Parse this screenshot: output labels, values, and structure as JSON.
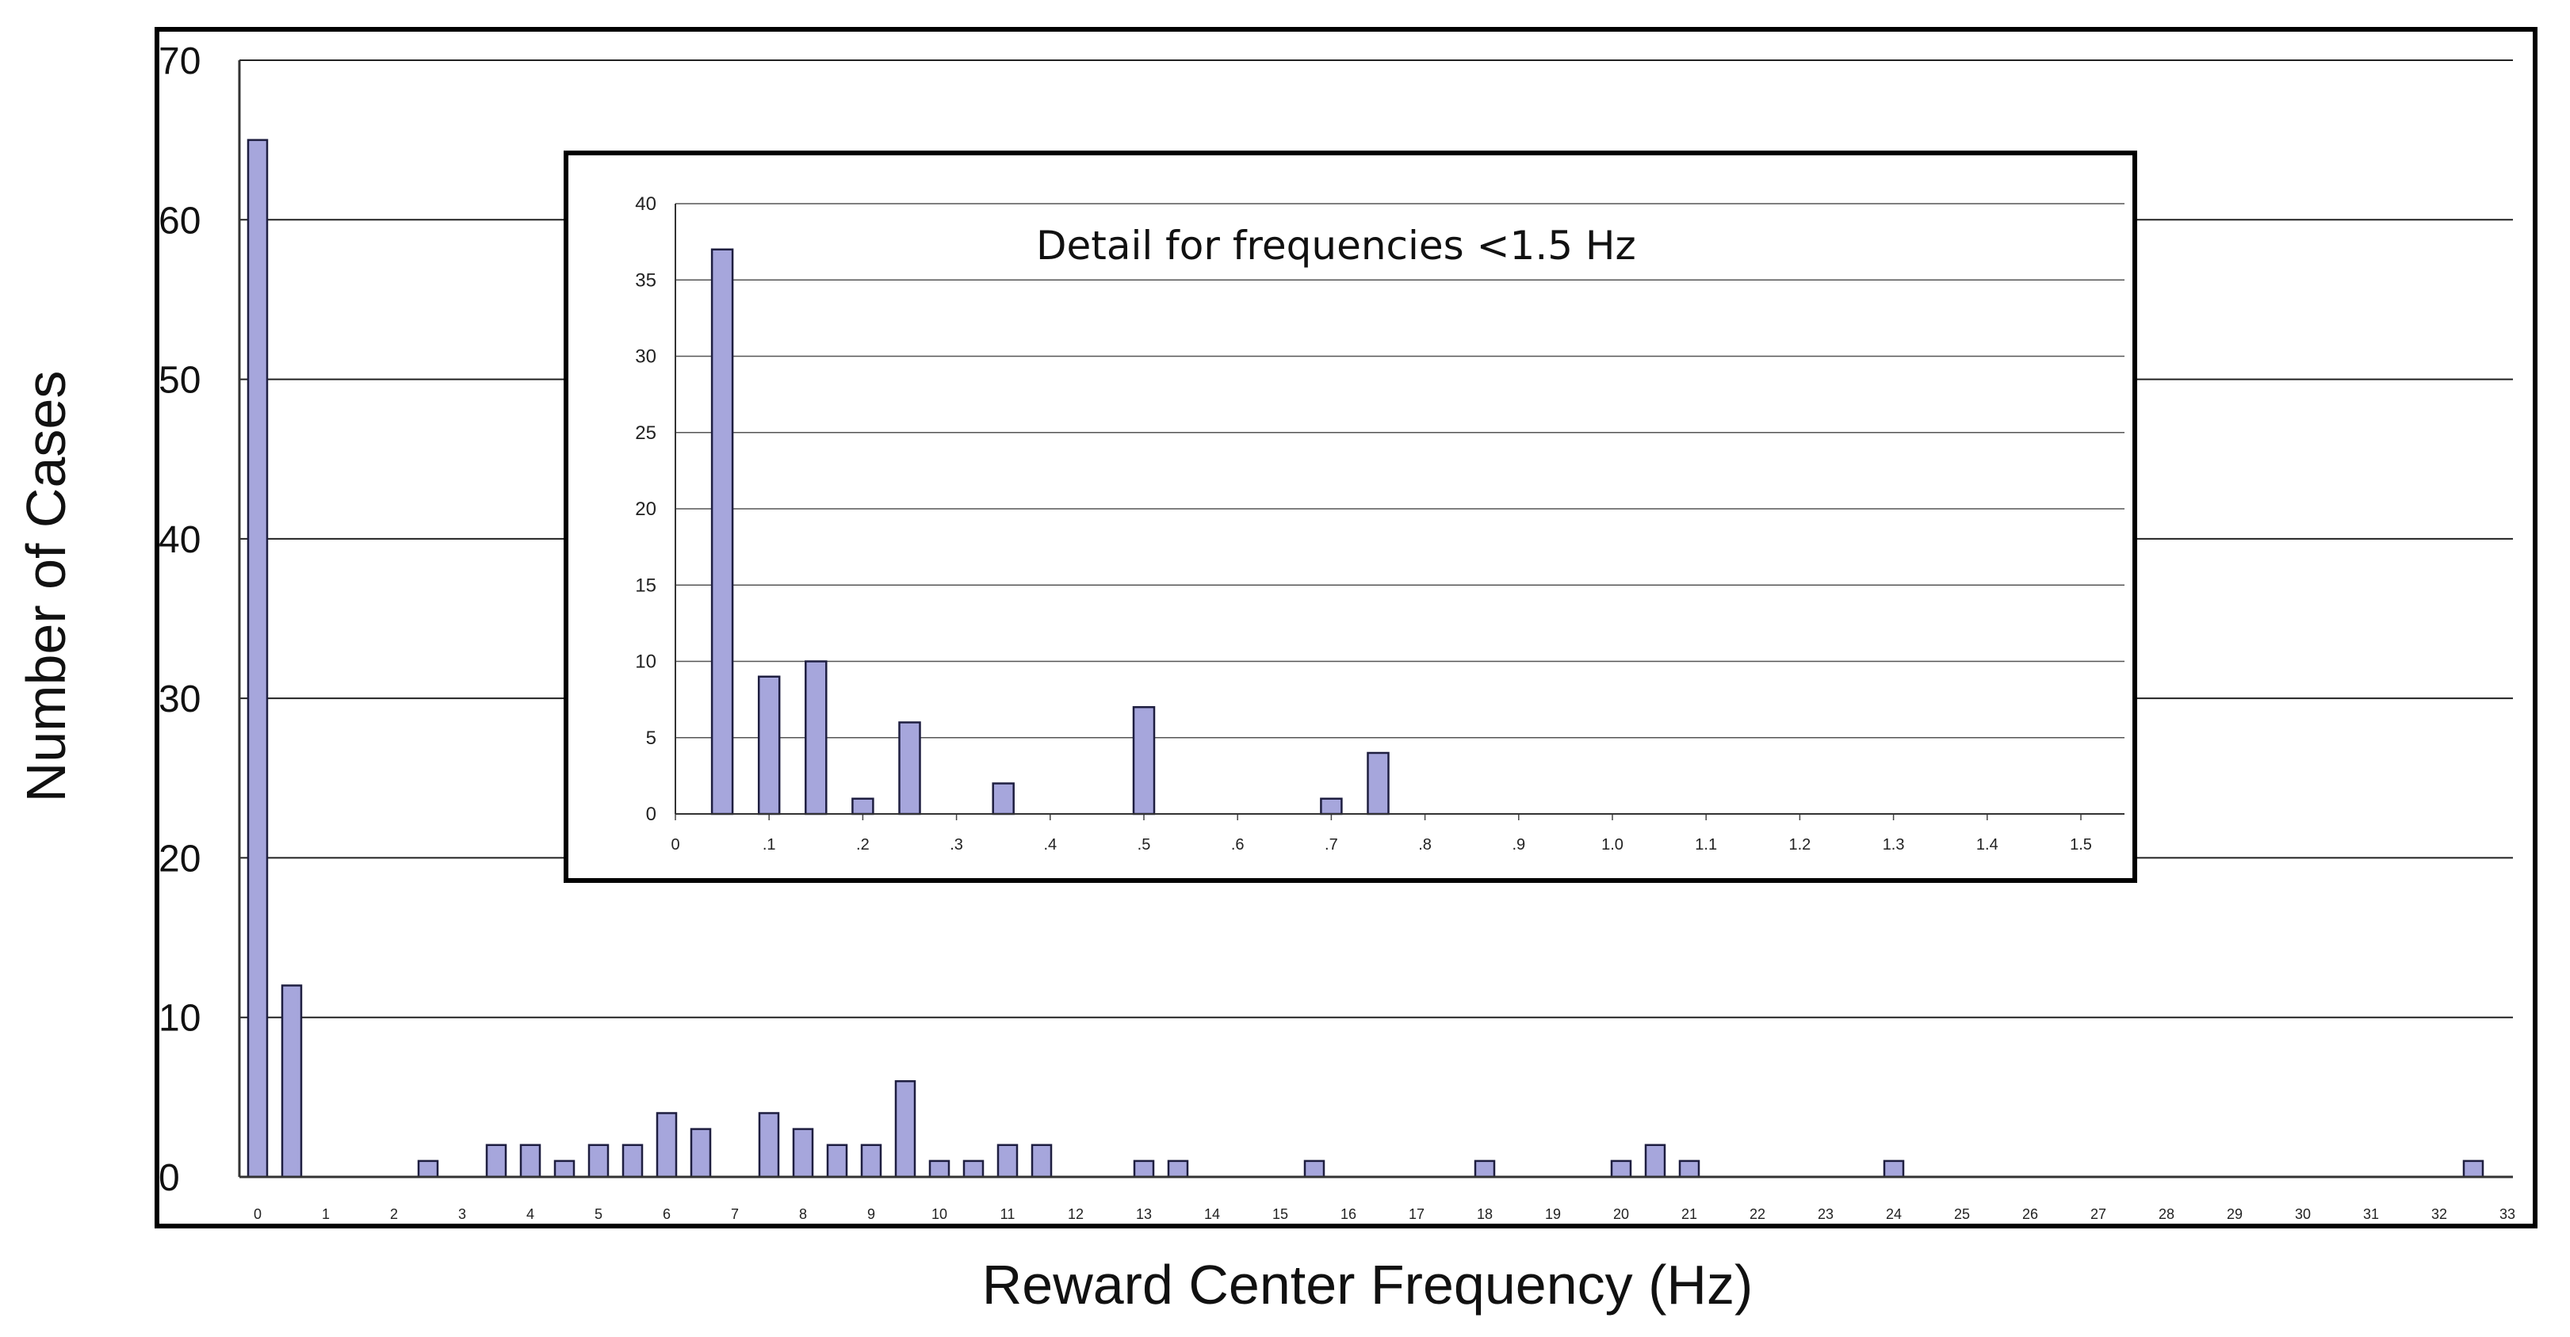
{
  "chart_data": [
    {
      "type": "bar",
      "title": "",
      "xlabel": "Reward Center Frequency (Hz)",
      "ylabel": "Number of Cases",
      "ylim": [
        0,
        70
      ],
      "xlim": [
        -0.25,
        33.25
      ],
      "grid": true,
      "bar_color": "#a6a6dc",
      "bar_edge": "#1e1e40",
      "yticks": [
        0,
        10,
        20,
        30,
        40,
        50,
        60,
        70
      ],
      "xticks": [
        "0",
        "1",
        "2",
        "3",
        "4",
        "5",
        "6",
        "7",
        "8",
        "9",
        "10",
        "11",
        "12",
        "13",
        "14",
        "15",
        "16",
        "17",
        "18",
        "19",
        "20",
        "21",
        "22",
        "23",
        "24",
        "25",
        "26",
        "27",
        "28",
        "29",
        "30",
        "31",
        "32",
        "33"
      ],
      "x": [
        0,
        0.5,
        2.5,
        3.5,
        4,
        4.5,
        5,
        5.5,
        6,
        6.5,
        7.5,
        8,
        8.5,
        9,
        9.5,
        10,
        10.5,
        11,
        11.5,
        13,
        13.5,
        15.5,
        18,
        20,
        20.5,
        21,
        24,
        32.5
      ],
      "values": [
        65,
        12,
        1,
        2,
        2,
        1,
        2,
        2,
        4,
        3,
        4,
        3,
        2,
        2,
        6,
        1,
        1,
        2,
        2,
        1,
        1,
        1,
        1,
        1,
        2,
        1,
        1,
        1
      ]
    },
    {
      "type": "bar",
      "title": "Detail for frequencies <1.5 Hz",
      "xlabel": "",
      "ylabel": "",
      "ylim": [
        0,
        40
      ],
      "xlim": [
        0,
        1.55
      ],
      "grid": true,
      "bar_color": "#a6a6dc",
      "bar_edge": "#1e1e40",
      "yticks": [
        0,
        5,
        10,
        15,
        20,
        25,
        30,
        35,
        40
      ],
      "xticks": [
        "0",
        ".1",
        ".2",
        ".3",
        ".4",
        ".5",
        ".6",
        ".7",
        ".8",
        ".9",
        "1.0",
        "1.1",
        "1.2",
        "1.3",
        "1.4",
        "1.5"
      ],
      "x": [
        0.05,
        0.1,
        0.15,
        0.2,
        0.25,
        0.35,
        0.5,
        0.7,
        0.75
      ],
      "values": [
        37,
        9,
        10,
        1,
        6,
        2,
        7,
        1,
        4
      ]
    }
  ]
}
